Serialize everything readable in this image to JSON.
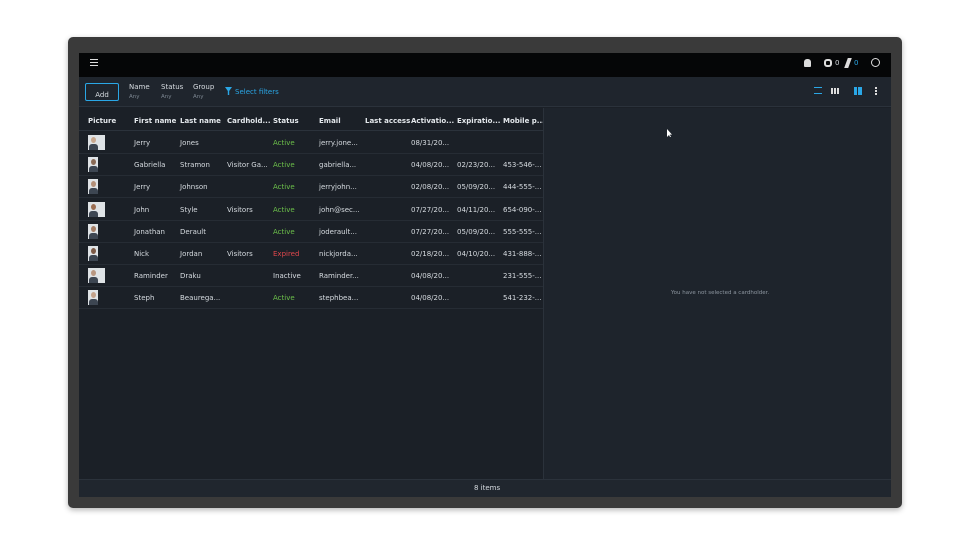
{
  "topbar": {
    "badges": [
      "0",
      "0"
    ]
  },
  "toolbar": {
    "add": "Add",
    "filters": [
      {
        "label": "Name",
        "value": "Any"
      },
      {
        "label": "Status",
        "value": "Any"
      },
      {
        "label": "Group",
        "value": "Any"
      }
    ],
    "select_filters": "Select filters"
  },
  "table": {
    "columns": [
      "Picture",
      "First name",
      "Last name",
      "Cardhold...",
      "Status",
      "Email",
      "Last access",
      "Activatio...",
      "Expiratio...",
      "Mobile p..."
    ],
    "rows": [
      {
        "first_name": "Jerry",
        "last_name": "Jones",
        "status": "Active",
        "status_color": "#6cc04a",
        "email": "jerry.jone...",
        "activation": "08/31/20..."
      },
      {
        "first_name": "Gabriella",
        "last_name": "Stramon",
        "cardholder": "Visitor Ga...",
        "status": "Active",
        "status_color": "#6cc04a",
        "email": "gabriella...",
        "activation": "04/08/20...",
        "expiration": "02/23/20...",
        "mobile": "453-546-..."
      },
      {
        "first_name": "Jerry",
        "last_name": "Johnson",
        "status": "Active",
        "status_color": "#6cc04a",
        "email": "jerryjohn...",
        "activation": "02/08/20...",
        "expiration": "05/09/20...",
        "mobile": "444-555-..."
      },
      {
        "first_name": "John",
        "last_name": "Style",
        "cardholder": "Visitors",
        "status": "Active",
        "status_color": "#6cc04a",
        "email": "john@sec...",
        "activation": "07/27/20...",
        "expiration": "04/11/20...",
        "mobile": "654-090-..."
      },
      {
        "first_name": "Jonathan",
        "last_name": "Derault",
        "status": "Active",
        "status_color": "#6cc04a",
        "email": "joderault...",
        "activation": "07/27/20...",
        "expiration": "05/09/20...",
        "mobile": "555-555-..."
      },
      {
        "first_name": "Nick",
        "last_name": "Jordan",
        "cardholder": "Visitors",
        "status": "Expired",
        "status_color": "#e0474c",
        "email": "nickjorda...",
        "activation": "02/18/20...",
        "expiration": "04/10/20...",
        "mobile": "431-888-..."
      },
      {
        "first_name": "Raminder",
        "last_name": "Draku",
        "status": "Inactive",
        "status_color": "#d8dde3",
        "email": "Raminder...",
        "activation": "04/08/20...",
        "mobile": "231-555-..."
      },
      {
        "first_name": "Steph",
        "last_name": "Beaurega...",
        "status": "Active",
        "status_color": "#6cc04a",
        "email": "stephbea...",
        "activation": "04/08/20...",
        "mobile": "541-232-..."
      }
    ]
  },
  "details": {
    "empty_message": "You have not selected a cardholder."
  },
  "footer": {
    "count": "8 items"
  }
}
